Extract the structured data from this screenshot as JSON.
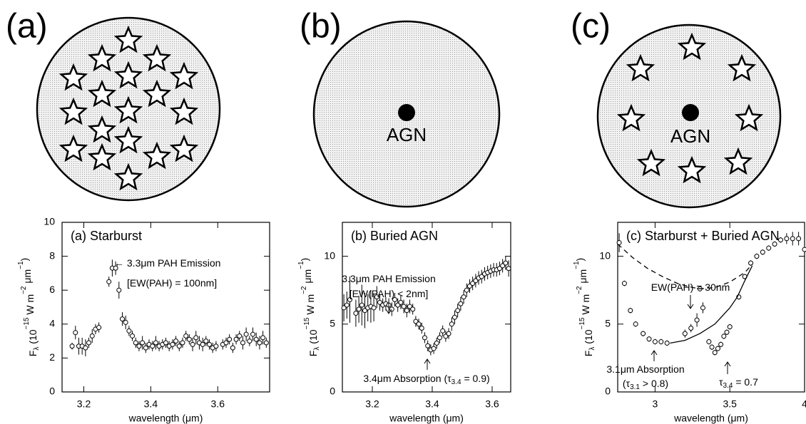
{
  "diagrams": [
    {
      "label": "(a)"
    },
    {
      "label": "(b)",
      "center": "AGN"
    },
    {
      "label": "(c)",
      "center": "AGN"
    }
  ],
  "chart_data": [
    {
      "type": "scatter",
      "title": "(a) Starburst",
      "xlabel": "wavelength (μm)",
      "ylabel": {
        "text": "F",
        "sub": "λ",
        "rest": [
          " (10",
          "−15",
          " W m",
          "−2",
          " μm",
          "−1",
          ")"
        ]
      },
      "xlim": [
        3.135,
        3.755
      ],
      "ylim": [
        0,
        10
      ],
      "xticks": [
        3.2,
        3.4,
        3.6
      ],
      "yticks": [
        0,
        2,
        4,
        6,
        8,
        10
      ],
      "series": [
        {
          "color": "#000000",
          "x": [
            3.165,
            3.175,
            3.185,
            3.195,
            3.205,
            3.215,
            3.225,
            3.235,
            3.245,
            3.275,
            3.285,
            3.295,
            3.305,
            3.315,
            3.325,
            3.335,
            3.345,
            3.355,
            3.365,
            3.375,
            3.385,
            3.395,
            3.405,
            3.415,
            3.425,
            3.435,
            3.445,
            3.455,
            3.465,
            3.475,
            3.485,
            3.495,
            3.505,
            3.515,
            3.525,
            3.535,
            3.545,
            3.555,
            3.565,
            3.575,
            3.585,
            3.595,
            3.615,
            3.625,
            3.635,
            3.645,
            3.655,
            3.665,
            3.675,
            3.685,
            3.695,
            3.705,
            3.715,
            3.725,
            3.735,
            3.745
          ],
          "values": [
            2.7,
            3.5,
            2.7,
            2.7,
            2.6,
            2.9,
            3.3,
            3.7,
            3.8,
            6.5,
            7.3,
            7.3,
            6.0,
            4.3,
            4.1,
            3.6,
            3.3,
            2.9,
            2.7,
            2.9,
            2.6,
            2.8,
            2.7,
            2.9,
            2.7,
            2.8,
            2.9,
            2.7,
            2.8,
            3.0,
            2.7,
            2.9,
            3.3,
            3.1,
            2.8,
            3.2,
            2.9,
            2.8,
            3.0,
            2.8,
            2.6,
            2.7,
            2.8,
            2.9,
            3.1,
            2.6,
            3.1,
            3.3,
            2.9,
            3.4,
            3.0,
            3.4,
            3.1,
            2.9,
            3.2,
            2.9
          ],
          "errors": [
            0.2,
            0.4,
            0.5,
            0.5,
            0.5,
            0.3,
            0.4,
            0.3,
            0.3,
            0.3,
            0.5,
            0.4,
            0.5,
            0.4,
            0.4,
            0.3,
            0.3,
            0.3,
            0.3,
            0.4,
            0.3,
            0.3,
            0.3,
            0.4,
            0.3,
            0.3,
            0.3,
            0.3,
            0.3,
            0.3,
            0.3,
            0.3,
            0.3,
            0.3,
            0.4,
            0.4,
            0.4,
            0.4,
            0.3,
            0.3,
            0.3,
            0.3,
            0.3,
            0.3,
            0.3,
            0.3,
            0.3,
            0.3,
            0.4,
            0.4,
            0.3,
            0.4,
            0.4,
            0.4,
            0.4,
            0.3
          ]
        }
      ],
      "annotations": [
        {
          "text": "← 3.3μm PAH Emission"
        },
        {
          "text": "[EW(PAH) = 100nm]"
        }
      ]
    },
    {
      "type": "scatter",
      "title": "(b) Buried AGN",
      "xlabel": "wavelength (μm)",
      "ylabel": {
        "text": "F",
        "sub": "λ",
        "rest": [
          " (10",
          "−15",
          " W m",
          "−2",
          " μm",
          "−1",
          ")"
        ]
      },
      "xlim": [
        3.1,
        3.662
      ],
      "ylim": [
        0,
        12.5
      ],
      "xticks": [
        3.2,
        3.4,
        3.6
      ],
      "yticks": [
        0,
        5,
        10
      ],
      "series": [
        {
          "color": "#000000",
          "x": [
            3.105,
            3.115,
            3.125,
            3.145,
            3.155,
            3.165,
            3.175,
            3.185,
            3.195,
            3.205,
            3.215,
            3.225,
            3.235,
            3.245,
            3.255,
            3.265,
            3.275,
            3.285,
            3.295,
            3.305,
            3.315,
            3.325,
            3.335,
            3.345,
            3.355,
            3.365,
            3.375,
            3.385,
            3.395,
            3.405,
            3.415,
            3.425,
            3.435,
            3.445,
            3.455,
            3.465,
            3.475,
            3.485,
            3.495,
            3.505,
            3.515,
            3.525,
            3.535,
            3.545,
            3.555,
            3.565,
            3.575,
            3.585,
            3.595,
            3.605,
            3.615,
            3.625,
            3.635,
            3.645,
            3.655
          ],
          "values": [
            6.2,
            6.4,
            6.8,
            5.8,
            6.1,
            6.4,
            6.0,
            6.2,
            6.3,
            6.2,
            7.0,
            6.6,
            6.4,
            6.5,
            6.4,
            6.1,
            6.8,
            6.4,
            6.6,
            6.3,
            6.0,
            6.3,
            6.1,
            5.2,
            5.0,
            4.7,
            4.0,
            3.4,
            3.1,
            3.2,
            3.6,
            4.0,
            4.5,
            4.1,
            4.3,
            5.0,
            5.5,
            6.0,
            6.5,
            7.0,
            7.5,
            7.8,
            8.0,
            8.2,
            8.4,
            8.5,
            8.7,
            8.8,
            8.9,
            9.0,
            9.0,
            9.1,
            9.3,
            9.5,
            9.1
          ],
          "errors": [
            1.0,
            1.0,
            1.7,
            1.0,
            1.0,
            1.5,
            1.3,
            1.0,
            1.2,
            1.0,
            0.8,
            0.6,
            0.5,
            0.5,
            0.5,
            0.5,
            0.5,
            0.5,
            0.5,
            0.5,
            0.5,
            0.5,
            0.4,
            0.4,
            0.4,
            0.4,
            0.4,
            0.4,
            0.4,
            0.4,
            0.4,
            0.4,
            0.4,
            0.4,
            0.4,
            0.5,
            0.5,
            0.5,
            0.5,
            0.5,
            0.5,
            0.5,
            0.5,
            0.5,
            0.5,
            0.5,
            0.5,
            0.5,
            0.5,
            0.5,
            0.5,
            0.5,
            0.5,
            0.5,
            0.6
          ]
        }
      ],
      "annotations": [
        {
          "text": "3.3μm PAH Emission"
        },
        {
          "text": "[EW(PAH) < 2nm]"
        },
        {
          "text": "3.4μm Absorption (τ",
          "sub": "3.4",
          "tail": " = 0.9)"
        }
      ]
    },
    {
      "type": "scatter",
      "title": "(c) Starburst + Buried AGN",
      "xlabel": "wavelength (μm)",
      "ylabel": {
        "text": "F",
        "sub": "λ",
        "rest": [
          " (10",
          "−15",
          " W m",
          "−2",
          " μm",
          "−1",
          ")"
        ]
      },
      "xlim": [
        2.75,
        4
      ],
      "ylim": [
        0,
        12.5
      ],
      "xticks": [
        3,
        3.5,
        4
      ],
      "yticks": [
        0,
        5,
        10
      ],
      "series": [
        {
          "color": "#000000",
          "x": [
            2.76,
            2.795,
            2.835,
            2.87,
            2.92,
            2.96,
            3.0,
            3.04,
            3.08,
            3.2,
            3.24,
            3.28,
            3.3,
            3.32,
            3.36,
            3.38,
            3.4,
            3.42,
            3.44,
            3.46,
            3.48,
            3.5,
            3.56,
            3.6,
            3.64,
            3.68,
            3.72,
            3.76,
            3.8,
            3.84,
            3.88,
            3.92,
            3.96,
            4.0
          ],
          "values": [
            11.0,
            8.0,
            6.0,
            5.0,
            4.3,
            3.9,
            3.7,
            3.7,
            3.6,
            4.3,
            4.7,
            5.3,
            7.6,
            6.2,
            3.7,
            3.3,
            2.9,
            3.2,
            3.5,
            4.1,
            4.4,
            4.8,
            7.0,
            8.5,
            9.5,
            10.0,
            10.3,
            10.6,
            10.9,
            11.2,
            11.3,
            11.3,
            11.3,
            10.5
          ],
          "errors": [
            0.7,
            0.2,
            0.2,
            0.2,
            0.2,
            0.2,
            0.2,
            0.2,
            0.2,
            0.3,
            0.3,
            0.5,
            0.2,
            0.4,
            0.2,
            0.2,
            0.2,
            0.2,
            0.2,
            0.2,
            0.2,
            0.2,
            0.2,
            0.2,
            0.2,
            0.2,
            0.2,
            0.2,
            0.2,
            0.2,
            0.4,
            0.5,
            0.5,
            0.2
          ]
        },
        {
          "type": "line",
          "dash": true,
          "color": "#000000",
          "x": [
            2.75,
            2.85,
            2.95,
            3.05,
            3.15,
            3.25,
            3.3,
            3.4,
            3.5,
            3.6,
            3.65
          ],
          "values": [
            10.9,
            9.9,
            9.1,
            8.5,
            8.0,
            7.7,
            7.6,
            7.7,
            8.1,
            8.8,
            9.4
          ]
        },
        {
          "type": "line",
          "dash": false,
          "color": "#000000",
          "x": [
            3.1,
            3.2,
            3.3,
            3.4,
            3.5,
            3.55,
            3.6,
            3.65
          ],
          "values": [
            3.6,
            3.8,
            4.3,
            5.0,
            6.2,
            7.0,
            8.2,
            9.3
          ]
        }
      ],
      "annotations": [
        {
          "text": "EW(PAH) = 30nm"
        },
        {
          "text": "3.1μm Absorption"
        },
        {
          "text": "(τ",
          "sub": "3.1",
          "tail": " > 0.8)"
        },
        {
          "text": "τ",
          "sub": "3.4",
          "tail": " = 0.7"
        }
      ]
    }
  ]
}
